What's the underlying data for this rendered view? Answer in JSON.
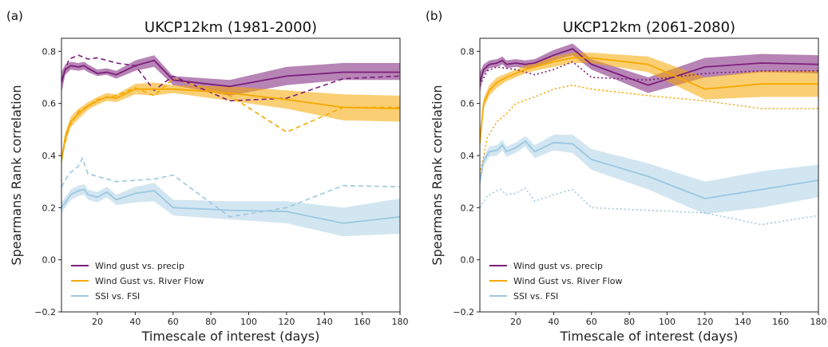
{
  "chart_data": [
    {
      "type": "line",
      "panel_label": "(a)",
      "title": "UKCP12km (1981-2000)",
      "xlabel": "Timescale of interest (days)",
      "ylabel": "Spearmans Rank correlation",
      "xlim": [
        1,
        180
      ],
      "ylim": [
        -0.2,
        0.85
      ],
      "xticks": [
        20,
        40,
        60,
        80,
        100,
        120,
        140,
        160,
        180
      ],
      "yticks": [
        -0.2,
        0.0,
        0.2,
        0.4,
        0.6,
        0.8
      ],
      "legend_position": "lower-left",
      "series": [
        {
          "name": "Wind gust vs. precip",
          "color": "#7b1f7a",
          "x": [
            1,
            3,
            6,
            10,
            13,
            15,
            20,
            25,
            30,
            40,
            50,
            60,
            90,
            120,
            150,
            180
          ],
          "y": [
            0.68,
            0.73,
            0.745,
            0.74,
            0.745,
            0.735,
            0.715,
            0.72,
            0.71,
            0.745,
            0.765,
            0.69,
            0.665,
            0.705,
            0.72,
            0.72
          ],
          "lower": [
            0.64,
            0.71,
            0.73,
            0.725,
            0.73,
            0.72,
            0.705,
            0.71,
            0.695,
            0.725,
            0.74,
            0.67,
            0.63,
            0.67,
            0.69,
            0.69
          ],
          "upper": [
            0.72,
            0.75,
            0.76,
            0.755,
            0.76,
            0.75,
            0.73,
            0.735,
            0.725,
            0.765,
            0.785,
            0.705,
            0.69,
            0.74,
            0.755,
            0.755
          ],
          "dashed_x": [
            1,
            5,
            10,
            15,
            20,
            30,
            40,
            50,
            60,
            90,
            120,
            150,
            180
          ],
          "dashed_y": [
            0.69,
            0.77,
            0.785,
            0.77,
            0.775,
            0.755,
            0.745,
            0.65,
            0.705,
            0.61,
            0.62,
            0.695,
            0.705
          ]
        },
        {
          "name": "Wind Gust vs. River Flow",
          "color": "#f5a800",
          "x": [
            1,
            3,
            6,
            10,
            15,
            20,
            25,
            30,
            40,
            50,
            60,
            90,
            120,
            150,
            180
          ],
          "y": [
            0.38,
            0.47,
            0.53,
            0.56,
            0.59,
            0.61,
            0.625,
            0.62,
            0.655,
            0.655,
            0.655,
            0.64,
            0.615,
            0.585,
            0.58
          ],
          "lower": [
            0.36,
            0.45,
            0.51,
            0.54,
            0.575,
            0.595,
            0.61,
            0.605,
            0.635,
            0.63,
            0.64,
            0.61,
            0.58,
            0.535,
            0.53
          ],
          "upper": [
            0.4,
            0.49,
            0.55,
            0.58,
            0.605,
            0.625,
            0.64,
            0.635,
            0.675,
            0.68,
            0.67,
            0.665,
            0.65,
            0.635,
            0.63
          ],
          "dashed_x": [
            1,
            5,
            10,
            15,
            20,
            30,
            40,
            50,
            60,
            90,
            120,
            150,
            180
          ],
          "dashed_y": [
            0.39,
            0.51,
            0.57,
            0.59,
            0.615,
            0.63,
            0.66,
            0.63,
            0.695,
            0.63,
            0.49,
            0.585,
            0.585
          ]
        },
        {
          "name": "SSI vs. FSI",
          "color": "#9cc8e0",
          "x": [
            1,
            3,
            6,
            10,
            13,
            15,
            20,
            25,
            30,
            40,
            50,
            60,
            90,
            120,
            150,
            180
          ],
          "y": [
            0.2,
            0.22,
            0.25,
            0.265,
            0.27,
            0.25,
            0.24,
            0.26,
            0.23,
            0.255,
            0.265,
            0.2,
            0.19,
            0.185,
            0.14,
            0.165
          ],
          "lower": [
            0.18,
            0.2,
            0.23,
            0.245,
            0.25,
            0.23,
            0.22,
            0.24,
            0.21,
            0.22,
            0.225,
            0.17,
            0.155,
            0.14,
            0.09,
            0.1
          ],
          "upper": [
            0.22,
            0.24,
            0.27,
            0.285,
            0.29,
            0.27,
            0.26,
            0.28,
            0.25,
            0.28,
            0.295,
            0.23,
            0.225,
            0.225,
            0.2,
            0.235
          ],
          "dashed_x": [
            1,
            5,
            10,
            12,
            15,
            20,
            30,
            40,
            50,
            60,
            90,
            120,
            150,
            180
          ],
          "dashed_y": [
            0.28,
            0.33,
            0.36,
            0.39,
            0.33,
            0.32,
            0.3,
            0.305,
            0.31,
            0.325,
            0.165,
            0.2,
            0.285,
            0.28
          ]
        }
      ]
    },
    {
      "type": "line",
      "panel_label": "(b)",
      "title": "UKCP12km (2061-2080)",
      "xlabel": "Timescale of interest (days)",
      "ylabel": "Spearmans Rank correlation",
      "xlim": [
        1,
        180
      ],
      "ylim": [
        -0.2,
        0.85
      ],
      "xticks": [
        20,
        40,
        60,
        80,
        100,
        120,
        140,
        160,
        180
      ],
      "yticks": [
        -0.2,
        0.0,
        0.2,
        0.4,
        0.6,
        0.8
      ],
      "legend_position": "lower-left",
      "series": [
        {
          "name": "Wind gust vs. precip",
          "color": "#7b1f7a",
          "x": [
            1,
            3,
            6,
            10,
            13,
            15,
            20,
            25,
            30,
            40,
            50,
            60,
            90,
            120,
            150,
            180
          ],
          "y": [
            0.68,
            0.73,
            0.75,
            0.755,
            0.765,
            0.75,
            0.755,
            0.75,
            0.755,
            0.785,
            0.81,
            0.75,
            0.67,
            0.74,
            0.755,
            0.75
          ],
          "lower": [
            0.64,
            0.71,
            0.735,
            0.74,
            0.75,
            0.735,
            0.74,
            0.735,
            0.74,
            0.765,
            0.785,
            0.73,
            0.64,
            0.7,
            0.72,
            0.715
          ],
          "upper": [
            0.72,
            0.75,
            0.765,
            0.77,
            0.78,
            0.765,
            0.77,
            0.765,
            0.77,
            0.805,
            0.83,
            0.77,
            0.7,
            0.775,
            0.79,
            0.785
          ],
          "dashed_x": [
            1,
            5,
            10,
            15,
            20,
            30,
            40,
            50,
            60,
            90,
            120,
            150,
            180
          ],
          "dashed_y": [
            0.67,
            0.725,
            0.74,
            0.735,
            0.73,
            0.71,
            0.73,
            0.76,
            0.7,
            0.69,
            0.715,
            0.725,
            0.725
          ]
        },
        {
          "name": "Wind Gust vs. River Flow",
          "color": "#f5a800",
          "x": [
            1,
            3,
            6,
            10,
            15,
            20,
            25,
            30,
            40,
            50,
            60,
            90,
            120,
            150,
            180
          ],
          "y": [
            0.45,
            0.6,
            0.65,
            0.68,
            0.7,
            0.715,
            0.73,
            0.74,
            0.76,
            0.775,
            0.775,
            0.75,
            0.655,
            0.675,
            0.675
          ],
          "lower": [
            0.42,
            0.58,
            0.63,
            0.66,
            0.685,
            0.7,
            0.715,
            0.725,
            0.74,
            0.755,
            0.755,
            0.72,
            0.615,
            0.625,
            0.625
          ],
          "upper": [
            0.48,
            0.62,
            0.67,
            0.7,
            0.715,
            0.73,
            0.745,
            0.755,
            0.78,
            0.795,
            0.795,
            0.78,
            0.7,
            0.725,
            0.725
          ],
          "dashed_x": [
            1,
            5,
            10,
            15,
            20,
            30,
            40,
            50,
            60,
            90,
            120,
            150,
            180
          ],
          "dashed_y": [
            0.33,
            0.47,
            0.53,
            0.56,
            0.6,
            0.625,
            0.655,
            0.67,
            0.655,
            0.63,
            0.61,
            0.58,
            0.58
          ]
        },
        {
          "name": "SSI vs. FSI",
          "color": "#9cc8e0",
          "x": [
            1,
            3,
            6,
            10,
            13,
            15,
            20,
            25,
            30,
            40,
            50,
            60,
            90,
            120,
            150,
            180
          ],
          "y": [
            0.3,
            0.38,
            0.415,
            0.42,
            0.44,
            0.415,
            0.43,
            0.455,
            0.415,
            0.45,
            0.445,
            0.385,
            0.32,
            0.235,
            0.27,
            0.305
          ],
          "lower": [
            0.28,
            0.36,
            0.395,
            0.4,
            0.42,
            0.395,
            0.41,
            0.435,
            0.39,
            0.42,
            0.41,
            0.345,
            0.27,
            0.175,
            0.2,
            0.24
          ],
          "upper": [
            0.32,
            0.4,
            0.435,
            0.44,
            0.46,
            0.435,
            0.45,
            0.475,
            0.44,
            0.48,
            0.48,
            0.425,
            0.37,
            0.3,
            0.34,
            0.365
          ],
          "dashed_x": [
            1,
            5,
            10,
            12,
            15,
            20,
            25,
            30,
            40,
            50,
            60,
            90,
            120,
            150,
            180
          ],
          "dashed_y": [
            0.2,
            0.245,
            0.265,
            0.27,
            0.25,
            0.255,
            0.275,
            0.225,
            0.25,
            0.27,
            0.2,
            0.19,
            0.18,
            0.135,
            0.17
          ]
        }
      ]
    }
  ]
}
